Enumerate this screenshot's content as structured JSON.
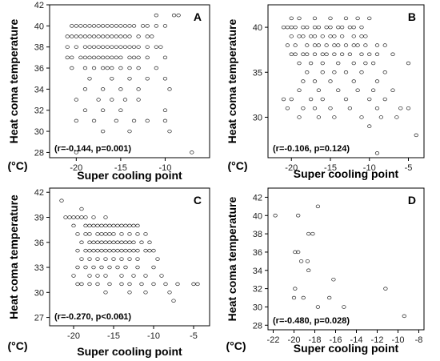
{
  "chart_data": [
    {
      "type": "scatter",
      "panel": "A",
      "stat": "(r=-0.144, p=0.001)",
      "xlabel": "Super cooling point",
      "ylabel": "Heat coma temperature",
      "yunit": "(°C)",
      "xlim": [
        -23,
        -5
      ],
      "ylim": [
        27.5,
        42
      ],
      "xticks": [
        -20,
        -15,
        -10
      ],
      "yticks": [
        28,
        30,
        32,
        34,
        36,
        38,
        40,
        42
      ],
      "points": [
        [
          -20.5,
          40
        ],
        [
          -20,
          40
        ],
        [
          -19.5,
          40
        ],
        [
          -19,
          40
        ],
        [
          -18.5,
          40
        ],
        [
          -18,
          40
        ],
        [
          -17.5,
          40
        ],
        [
          -17,
          40
        ],
        [
          -16.5,
          40
        ],
        [
          -16,
          40
        ],
        [
          -15.5,
          40
        ],
        [
          -15,
          40
        ],
        [
          -14.5,
          40
        ],
        [
          -14,
          40
        ],
        [
          -13.5,
          40
        ],
        [
          -12.5,
          40
        ],
        [
          -12,
          40
        ],
        [
          -11,
          40
        ],
        [
          -10,
          40
        ],
        [
          -21,
          39
        ],
        [
          -20.5,
          39
        ],
        [
          -20,
          39
        ],
        [
          -19.5,
          39
        ],
        [
          -19,
          39
        ],
        [
          -18.5,
          39
        ],
        [
          -18,
          39
        ],
        [
          -17.5,
          39
        ],
        [
          -17,
          39
        ],
        [
          -16.5,
          39
        ],
        [
          -16,
          39
        ],
        [
          -15.5,
          39
        ],
        [
          -15,
          39
        ],
        [
          -14.5,
          39
        ],
        [
          -14,
          39
        ],
        [
          -13,
          39
        ],
        [
          -12,
          39
        ],
        [
          -11.5,
          39
        ],
        [
          -21,
          38
        ],
        [
          -20,
          38
        ],
        [
          -19,
          38
        ],
        [
          -18.5,
          38
        ],
        [
          -18,
          38
        ],
        [
          -17.5,
          38
        ],
        [
          -17,
          38
        ],
        [
          -16.5,
          38
        ],
        [
          -16,
          38
        ],
        [
          -15.5,
          38
        ],
        [
          -15,
          38
        ],
        [
          -14.5,
          38
        ],
        [
          -14,
          38
        ],
        [
          -13.5,
          38
        ],
        [
          -13,
          38
        ],
        [
          -12,
          38
        ],
        [
          -11,
          38
        ],
        [
          -10.5,
          38
        ],
        [
          -21,
          37
        ],
        [
          -20.5,
          37
        ],
        [
          -19.5,
          37
        ],
        [
          -19,
          37
        ],
        [
          -18.5,
          37
        ],
        [
          -18,
          37
        ],
        [
          -17.5,
          37
        ],
        [
          -17,
          37
        ],
        [
          -16.5,
          37
        ],
        [
          -16,
          37
        ],
        [
          -15.5,
          37
        ],
        [
          -15,
          37
        ],
        [
          -14,
          37
        ],
        [
          -13.5,
          37
        ],
        [
          -13,
          37
        ],
        [
          -12,
          37
        ],
        [
          -10,
          37
        ],
        [
          -20.5,
          36
        ],
        [
          -19,
          36
        ],
        [
          -18,
          36
        ],
        [
          -17,
          36
        ],
        [
          -16.5,
          36
        ],
        [
          -16,
          36
        ],
        [
          -15,
          36
        ],
        [
          -14,
          36
        ],
        [
          -13,
          36
        ],
        [
          -11,
          36
        ],
        [
          -18.5,
          35
        ],
        [
          -16,
          35
        ],
        [
          -14,
          35
        ],
        [
          -12,
          35
        ],
        [
          -10,
          35
        ],
        [
          -19,
          34
        ],
        [
          -17,
          34
        ],
        [
          -15,
          34
        ],
        [
          -13,
          34
        ],
        [
          -9.5,
          34
        ],
        [
          -20,
          33
        ],
        [
          -17.5,
          33
        ],
        [
          -16,
          33
        ],
        [
          -14.5,
          33
        ],
        [
          -13,
          33
        ],
        [
          -19,
          32
        ],
        [
          -17,
          32
        ],
        [
          -15,
          32
        ],
        [
          -10,
          32
        ],
        [
          -20,
          31
        ],
        [
          -18,
          31
        ],
        [
          -15.5,
          31
        ],
        [
          -13.5,
          31
        ],
        [
          -12,
          31
        ],
        [
          -10,
          31
        ],
        [
          -17,
          30
        ],
        [
          -14,
          30
        ],
        [
          -9.5,
          30
        ],
        [
          -20,
          28
        ],
        [
          -7,
          28
        ],
        [
          -8.5,
          41
        ],
        [
          -9,
          41
        ],
        [
          -11,
          41
        ]
      ]
    },
    {
      "type": "scatter",
      "panel": "B",
      "stat": "(r=-0.106, p=0.124)",
      "xlabel": "Super cooling point",
      "ylabel": "Heat coma temperature",
      "yunit": "(°C)",
      "xlim": [
        -23,
        -3
      ],
      "ylim": [
        25.5,
        42.5
      ],
      "xticks": [
        -20,
        -15,
        -10,
        -5
      ],
      "yticks": [
        30,
        35,
        40
      ],
      "points": [
        [
          -21,
          40
        ],
        [
          -20.5,
          40
        ],
        [
          -20,
          40
        ],
        [
          -19.5,
          40
        ],
        [
          -18.5,
          40
        ],
        [
          -18,
          40
        ],
        [
          -17,
          40
        ],
        [
          -16.5,
          40
        ],
        [
          -15.5,
          40
        ],
        [
          -15,
          40
        ],
        [
          -14,
          40
        ],
        [
          -13.5,
          40
        ],
        [
          -12.5,
          40
        ],
        [
          -12,
          40
        ],
        [
          -11,
          40
        ],
        [
          -20,
          41
        ],
        [
          -19,
          41
        ],
        [
          -17,
          41
        ],
        [
          -15,
          41
        ],
        [
          -13,
          41
        ],
        [
          -11.5,
          41
        ],
        [
          -10,
          41
        ],
        [
          -20,
          39
        ],
        [
          -19,
          39
        ],
        [
          -18.5,
          39
        ],
        [
          -17.5,
          39
        ],
        [
          -17,
          39
        ],
        [
          -16,
          39
        ],
        [
          -15,
          39
        ],
        [
          -14.5,
          39
        ],
        [
          -13.5,
          39
        ],
        [
          -12,
          39
        ],
        [
          -11,
          39
        ],
        [
          -10.5,
          39
        ],
        [
          -20.5,
          38
        ],
        [
          -19.5,
          38
        ],
        [
          -18,
          38
        ],
        [
          -17,
          38
        ],
        [
          -16.5,
          38
        ],
        [
          -15.5,
          38
        ],
        [
          -14.5,
          38
        ],
        [
          -14,
          38
        ],
        [
          -13,
          38
        ],
        [
          -12,
          38
        ],
        [
          -11.5,
          38
        ],
        [
          -10.5,
          38
        ],
        [
          -9,
          38
        ],
        [
          -8,
          38
        ],
        [
          -20,
          37
        ],
        [
          -19.5,
          37
        ],
        [
          -18.5,
          37
        ],
        [
          -18,
          37
        ],
        [
          -17,
          37
        ],
        [
          -16,
          37
        ],
        [
          -15.5,
          37
        ],
        [
          -14.5,
          37
        ],
        [
          -13.5,
          37
        ],
        [
          -12.5,
          37
        ],
        [
          -11,
          37
        ],
        [
          -10,
          37
        ],
        [
          -9,
          37
        ],
        [
          -7,
          37
        ],
        [
          -19,
          36
        ],
        [
          -17.5,
          36
        ],
        [
          -16,
          36
        ],
        [
          -14,
          36
        ],
        [
          -12,
          36
        ],
        [
          -10.5,
          36
        ],
        [
          -9.5,
          36
        ],
        [
          -5,
          36
        ],
        [
          -18,
          35
        ],
        [
          -16,
          35
        ],
        [
          -14.5,
          35
        ],
        [
          -13,
          35
        ],
        [
          -11,
          35
        ],
        [
          -8,
          35
        ],
        [
          -18.5,
          34
        ],
        [
          -17,
          34
        ],
        [
          -15,
          34
        ],
        [
          -12,
          34
        ],
        [
          -9,
          34
        ],
        [
          -19,
          33
        ],
        [
          -16.5,
          33
        ],
        [
          -14,
          33
        ],
        [
          -11.5,
          33
        ],
        [
          -9.5,
          33
        ],
        [
          -7,
          33
        ],
        [
          -21,
          32
        ],
        [
          -20,
          32
        ],
        [
          -17.5,
          32
        ],
        [
          -16,
          32
        ],
        [
          -13,
          32
        ],
        [
          -10,
          32
        ],
        [
          -8,
          32
        ],
        [
          -20.5,
          31
        ],
        [
          -18.5,
          31
        ],
        [
          -17,
          31
        ],
        [
          -15,
          31
        ],
        [
          -12.5,
          31
        ],
        [
          -9,
          31
        ],
        [
          -6,
          31
        ],
        [
          -5,
          31
        ],
        [
          -19,
          30
        ],
        [
          -16.5,
          30
        ],
        [
          -14.5,
          30
        ],
        [
          -11,
          30
        ],
        [
          -8.5,
          30
        ],
        [
          -6.5,
          30
        ],
        [
          -10,
          29
        ],
        [
          -4,
          28
        ],
        [
          -9,
          26
        ]
      ]
    },
    {
      "type": "scatter",
      "panel": "C",
      "stat": "(r=-0.270, p<0.001)",
      "xlabel": "Super cooling point",
      "ylabel": "Heat coma temperature",
      "yunit": "(°C)",
      "xlim": [
        -23,
        -3
      ],
      "ylim": [
        26,
        42.5
      ],
      "xticks": [
        -20,
        -15,
        -10,
        -5
      ],
      "yticks": [
        27,
        30,
        33,
        36,
        39,
        42
      ],
      "points": [
        [
          -21.5,
          41
        ],
        [
          -19,
          40
        ],
        [
          -21,
          39
        ],
        [
          -20.5,
          39
        ],
        [
          -20,
          39
        ],
        [
          -19.5,
          39
        ],
        [
          -19,
          39
        ],
        [
          -18.5,
          39
        ],
        [
          -17.5,
          39
        ],
        [
          -16,
          39
        ],
        [
          -20,
          38
        ],
        [
          -18.5,
          38
        ],
        [
          -18,
          38
        ],
        [
          -17.5,
          38
        ],
        [
          -17,
          38
        ],
        [
          -16.5,
          38
        ],
        [
          -16,
          38
        ],
        [
          -15.5,
          38
        ],
        [
          -15,
          38
        ],
        [
          -14.5,
          38
        ],
        [
          -14,
          38
        ],
        [
          -13.5,
          38
        ],
        [
          -13,
          38
        ],
        [
          -12.5,
          38
        ],
        [
          -12,
          38
        ],
        [
          -19.5,
          37
        ],
        [
          -18.5,
          37
        ],
        [
          -18,
          37
        ],
        [
          -17,
          37
        ],
        [
          -16.5,
          37
        ],
        [
          -16,
          37
        ],
        [
          -15.5,
          37
        ],
        [
          -15,
          37
        ],
        [
          -14,
          37
        ],
        [
          -13,
          37
        ],
        [
          -12,
          37
        ],
        [
          -11,
          37
        ],
        [
          -19,
          36
        ],
        [
          -18,
          36
        ],
        [
          -17.5,
          36
        ],
        [
          -17,
          36
        ],
        [
          -16.5,
          36
        ],
        [
          -16,
          36
        ],
        [
          -15.5,
          36
        ],
        [
          -15,
          36
        ],
        [
          -14.5,
          36
        ],
        [
          -14,
          36
        ],
        [
          -13.5,
          36
        ],
        [
          -13,
          36
        ],
        [
          -12.5,
          36
        ],
        [
          -11.5,
          36
        ],
        [
          -10.5,
          36
        ],
        [
          -19.5,
          35
        ],
        [
          -18.5,
          35
        ],
        [
          -18,
          35
        ],
        [
          -17.5,
          35
        ],
        [
          -17,
          35
        ],
        [
          -16.5,
          35
        ],
        [
          -16,
          35
        ],
        [
          -15.5,
          35
        ],
        [
          -15,
          35
        ],
        [
          -14.5,
          35
        ],
        [
          -14,
          35
        ],
        [
          -13.5,
          35
        ],
        [
          -13,
          35
        ],
        [
          -12.5,
          35
        ],
        [
          -12,
          35
        ],
        [
          -11,
          35
        ],
        [
          -10.5,
          35
        ],
        [
          -10,
          35
        ],
        [
          -19,
          34
        ],
        [
          -18,
          34
        ],
        [
          -17,
          34
        ],
        [
          -16,
          34
        ],
        [
          -15,
          34
        ],
        [
          -14,
          34
        ],
        [
          -13,
          34
        ],
        [
          -12,
          34
        ],
        [
          -9.5,
          34
        ],
        [
          -19.5,
          33
        ],
        [
          -18.5,
          33
        ],
        [
          -17.5,
          33
        ],
        [
          -16.5,
          33
        ],
        [
          -15.5,
          33
        ],
        [
          -14.5,
          33
        ],
        [
          -13.5,
          33
        ],
        [
          -12,
          33
        ],
        [
          -10,
          33
        ],
        [
          -20,
          32
        ],
        [
          -18,
          32
        ],
        [
          -17,
          32
        ],
        [
          -16,
          32
        ],
        [
          -14,
          32
        ],
        [
          -12.5,
          32
        ],
        [
          -11,
          32
        ],
        [
          -9,
          32
        ],
        [
          -19.5,
          31
        ],
        [
          -19,
          31
        ],
        [
          -18,
          31
        ],
        [
          -17,
          31
        ],
        [
          -15.5,
          31
        ],
        [
          -14,
          31
        ],
        [
          -13,
          31
        ],
        [
          -11.5,
          31
        ],
        [
          -10,
          31
        ],
        [
          -8.5,
          31
        ],
        [
          -7,
          31
        ],
        [
          -5,
          31
        ],
        [
          -4.5,
          31
        ],
        [
          -16,
          30
        ],
        [
          -13,
          30
        ],
        [
          -11,
          30
        ],
        [
          -8,
          30
        ],
        [
          -7.5,
          29
        ],
        [
          -14,
          27
        ]
      ]
    },
    {
      "type": "scatter",
      "panel": "D",
      "stat": "(r=-0.480, p=0.028)",
      "xlabel": "Super cooling point",
      "ylabel": "Heat coma temperature",
      "yunit": "(°C)",
      "xlim": [
        -22.5,
        -7.5
      ],
      "ylim": [
        27.5,
        43
      ],
      "xticks": [
        -22,
        -20,
        -18,
        -16,
        -14,
        -12,
        -10,
        -8
      ],
      "yticks": [
        28,
        30,
        32,
        34,
        36,
        38,
        40,
        42
      ],
      "points": [
        [
          -21.8,
          40
        ],
        [
          -19.6,
          40
        ],
        [
          -17.7,
          41
        ],
        [
          -18.2,
          38
        ],
        [
          -18.6,
          38
        ],
        [
          -19.6,
          36
        ],
        [
          -19.9,
          36
        ],
        [
          -19.3,
          35
        ],
        [
          -18.7,
          35
        ],
        [
          -18.6,
          34
        ],
        [
          -16.2,
          33
        ],
        [
          -19.9,
          32
        ],
        [
          -20.0,
          31
        ],
        [
          -19.1,
          31
        ],
        [
          -16.6,
          31
        ],
        [
          -11.2,
          32
        ],
        [
          -17.7,
          30
        ],
        [
          -15.2,
          30
        ],
        [
          -9.4,
          29
        ]
      ]
    }
  ]
}
